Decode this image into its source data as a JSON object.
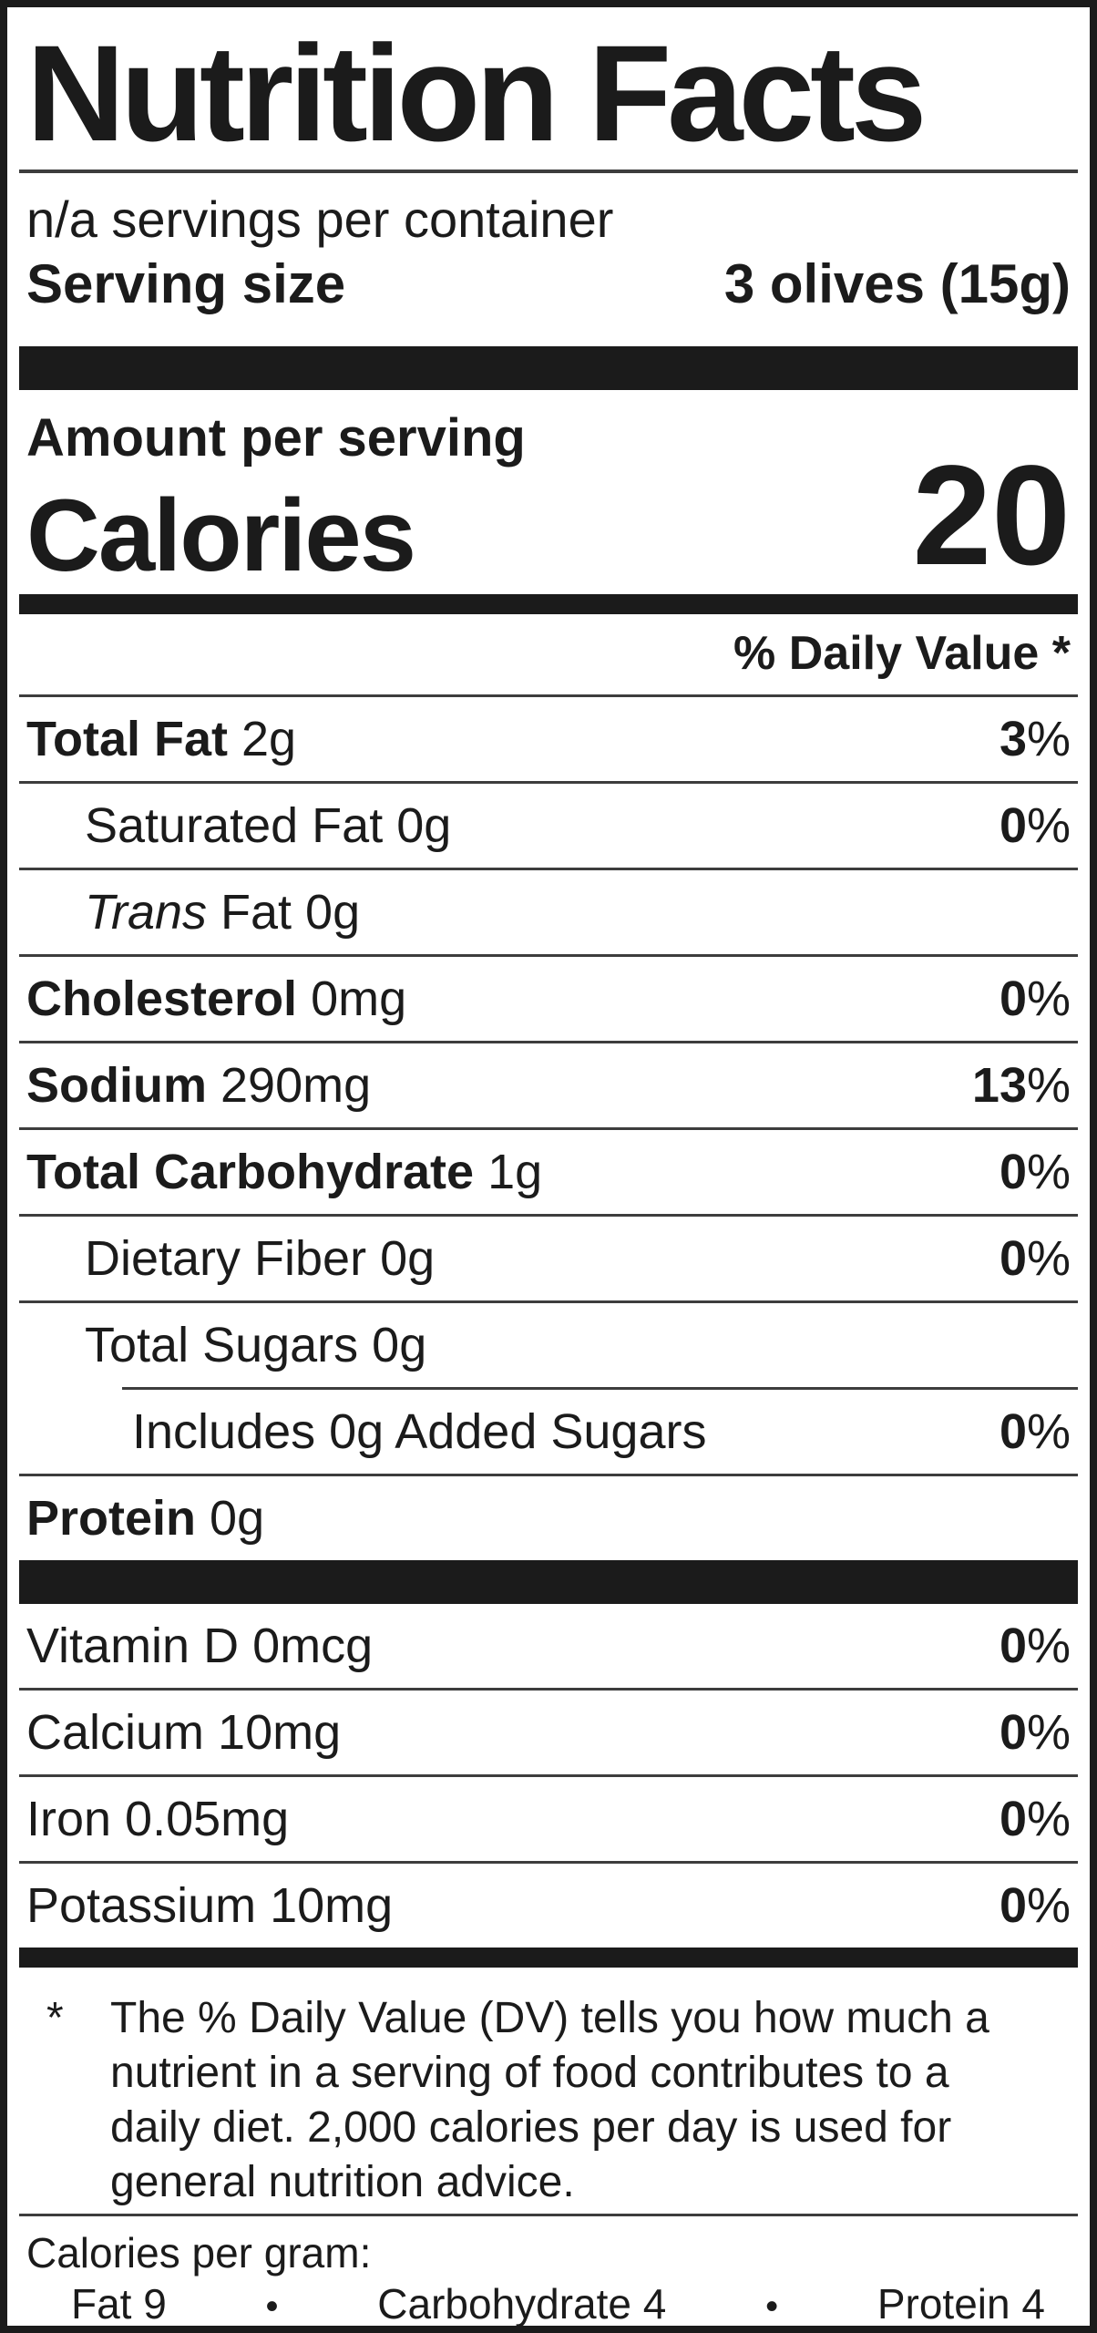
{
  "label": {
    "title": "Nutrition Facts",
    "servings_per_container": "n/a servings per container",
    "serving_size_label": "Serving size",
    "serving_size_value": "3 olives (15g)",
    "amount_per_serving": "Amount per serving",
    "calories_label": "Calories",
    "calories_value": "20",
    "daily_value_header": "% Daily Value *",
    "rows": [
      {
        "strong": "Total Fat ",
        "em": "",
        "text": "2g",
        "dv": "3",
        "sfx": "%"
      },
      {
        "strong": "",
        "em": "",
        "text": "Saturated Fat 0g",
        "dv": "0",
        "sfx": "%"
      },
      {
        "strong": "",
        "em": "Trans",
        "text": " Fat 0g",
        "dv": "",
        "sfx": ""
      },
      {
        "strong": "Cholesterol ",
        "em": "",
        "text": "0mg",
        "dv": "0",
        "sfx": "%"
      },
      {
        "strong": "Sodium ",
        "em": "",
        "text": "290mg",
        "dv": "13",
        "sfx": "%"
      },
      {
        "strong": "Total Carbohydrate ",
        "em": "",
        "text": "1g",
        "dv": "0",
        "sfx": "%"
      },
      {
        "strong": "",
        "em": "",
        "text": "Dietary Fiber 0g",
        "dv": "0",
        "sfx": "%"
      },
      {
        "strong": "",
        "em": "",
        "text": "Total Sugars 0g",
        "dv": "",
        "sfx": ""
      },
      {
        "strong": "",
        "em": "",
        "text": "Includes 0g Added Sugars",
        "dv": "0",
        "sfx": "%"
      },
      {
        "strong": "Protein ",
        "em": "",
        "text": "0g",
        "dv": "",
        "sfx": ""
      }
    ],
    "micros": [
      {
        "text": "Vitamin D 0mcg",
        "dv": "0",
        "sfx": "%"
      },
      {
        "text": "Calcium 10mg",
        "dv": "0",
        "sfx": "%"
      },
      {
        "text": "Iron 0.05mg",
        "dv": "0",
        "sfx": "%"
      },
      {
        "text": "Potassium 10mg",
        "dv": "0",
        "sfx": "%"
      }
    ],
    "footnote_marker": "*",
    "footnote": "The % Daily Value (DV) tells you how much a nutrient in a serving of food contributes to a daily diet. 2,000 calories per day is used for general nutrition advice.",
    "calories_per_gram_label": "Calories per gram:",
    "cpg": {
      "fat": "Fat 9",
      "bullet": "•",
      "carb": "Carbohydrate 4",
      "protein": "Protein 4"
    }
  }
}
